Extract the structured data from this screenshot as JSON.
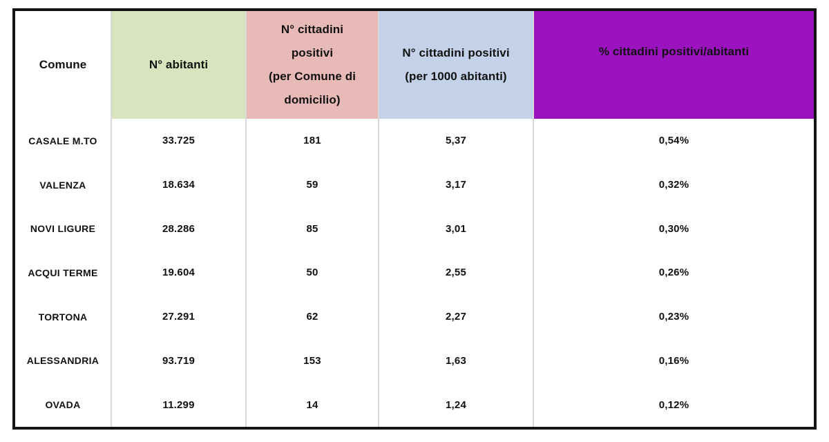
{
  "colors": {
    "frame": "#141414",
    "grid_line": "#d9d9d9",
    "text": "#111111",
    "header_comune_bg": "#ffffff",
    "header_green": "#d8e4bd",
    "header_pink": "#e7b9b7",
    "header_blue": "#c3d2e8",
    "header_purple": "#9a13be"
  },
  "table": {
    "headers": [
      {
        "lines": [
          "Comune"
        ],
        "bg": "#ffffff"
      },
      {
        "lines": [
          "N° abitanti"
        ],
        "bg": "#d8e4bd"
      },
      {
        "lines": [
          "N° cittadini",
          "positivi",
          "(per Comune di",
          "domicilio)"
        ],
        "bg": "#e7b9b7"
      },
      {
        "lines": [
          "N° cittadini positivi",
          "(per 1000 abitanti)"
        ],
        "bg": "#c3d2e8"
      },
      {
        "lines": [
          "% cittadini positivi/abitanti"
        ],
        "bg": "#9a13be"
      }
    ],
    "rows": [
      {
        "comune": "CASALE M.TO",
        "abitanti": "33.725",
        "positivi_domicilio": "181",
        "positivi_per_1000": "5,37",
        "pct_positivi": "0,54%"
      },
      {
        "comune": "VALENZA",
        "abitanti": "18.634",
        "positivi_domicilio": "59",
        "positivi_per_1000": "3,17",
        "pct_positivi": "0,32%"
      },
      {
        "comune": "NOVI LIGURE",
        "abitanti": "28.286",
        "positivi_domicilio": "85",
        "positivi_per_1000": "3,01",
        "pct_positivi": "0,30%"
      },
      {
        "comune": "ACQUI TERME",
        "abitanti": "19.604",
        "positivi_domicilio": "50",
        "positivi_per_1000": "2,55",
        "pct_positivi": "0,26%"
      },
      {
        "comune": "TORTONA",
        "abitanti": "27.291",
        "positivi_domicilio": "62",
        "positivi_per_1000": "2,27",
        "pct_positivi": "0,23%"
      },
      {
        "comune": "ALESSANDRIA",
        "abitanti": "93.719",
        "positivi_domicilio": "153",
        "positivi_per_1000": "1,63",
        "pct_positivi": "0,16%"
      },
      {
        "comune": "OVADA",
        "abitanti": "11.299",
        "positivi_domicilio": "14",
        "positivi_per_1000": "1,24",
        "pct_positivi": "0,12%"
      }
    ]
  },
  "chart_data": {
    "type": "table",
    "columns": [
      "Comune",
      "N° abitanti",
      "N° cittadini positivi (per Comune di domicilio)",
      "N° cittadini positivi (per 1000 abitanti)",
      "% cittadini positivi/abitanti"
    ],
    "rows": [
      [
        "CASALE M.TO",
        "33.725",
        "181",
        "5,37",
        "0,54%"
      ],
      [
        "VALENZA",
        "18.634",
        "59",
        "3,17",
        "0,32%"
      ],
      [
        "NOVI LIGURE",
        "28.286",
        "85",
        "3,01",
        "0,30%"
      ],
      [
        "ACQUI TERME",
        "19.604",
        "50",
        "2,55",
        "0,26%"
      ],
      [
        "TORTONA",
        "27.291",
        "62",
        "2,27",
        "0,23%"
      ],
      [
        "ALESSANDRIA",
        "93.719",
        "153",
        "1,63",
        "0,16%"
      ],
      [
        "OVADA",
        "11.299",
        "14",
        "1,24",
        "0,12%"
      ]
    ]
  }
}
